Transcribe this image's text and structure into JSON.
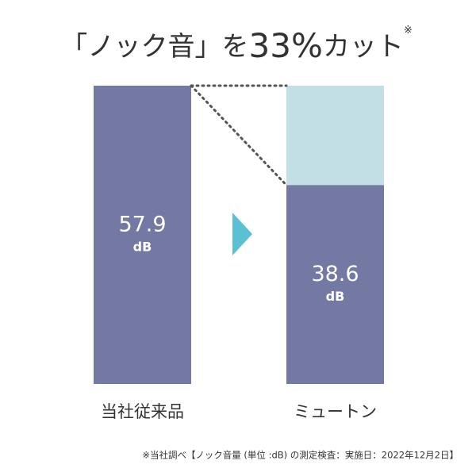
{
  "chart_data": {
    "type": "bar",
    "title": [
      "「ノック音」を",
      "33%",
      "カット"
    ],
    "title_note_mark": "※",
    "categories": [
      "当社従来品",
      "ミュートン"
    ],
    "values": [
      57.9,
      38.6
    ],
    "unit": "dB",
    "color": "#7479a3",
    "reduction_color": "#c3dfe6",
    "arrow_color": "#5bc0d3",
    "footnote": "※当社調べ【ノック音量 (単位 :dB) の測定検査：実施日：2022年12月2日】"
  }
}
